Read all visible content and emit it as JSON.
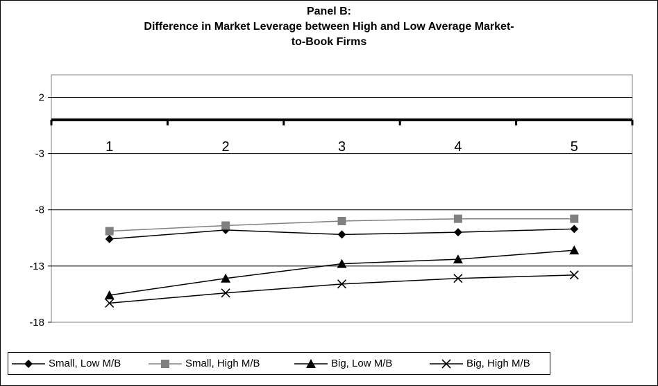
{
  "chart_data": {
    "type": "line",
    "title_lines": [
      "Panel B:",
      "Difference in Market Leverage between High and Low Average Market-",
      "to-Book Firms"
    ],
    "categories": [
      "1",
      "2",
      "3",
      "4",
      "5"
    ],
    "y_ticks": [
      "2",
      "-3",
      "-8",
      "-13",
      "-18"
    ],
    "ylim": [
      -18,
      4
    ],
    "grid": true,
    "legend_position": "bottom",
    "series": [
      {
        "name": "Small, Low M/B",
        "values": [
          -10.6,
          -9.8,
          -10.2,
          -10.0,
          -9.7
        ],
        "color": "#000000",
        "marker": "diamond"
      },
      {
        "name": "Small, High M/B",
        "values": [
          -9.9,
          -9.4,
          -9.0,
          -8.8,
          -8.8
        ],
        "color": "#808080",
        "marker": "square"
      },
      {
        "name": "Big, Low M/B",
        "values": [
          -15.6,
          -14.1,
          -12.8,
          -12.4,
          -11.6
        ],
        "color": "#000000",
        "marker": "triangle"
      },
      {
        "name": "Big, High M/B",
        "values": [
          -16.3,
          -15.4,
          -14.6,
          -14.1,
          -13.8
        ],
        "color": "#000000",
        "marker": "x"
      }
    ]
  }
}
